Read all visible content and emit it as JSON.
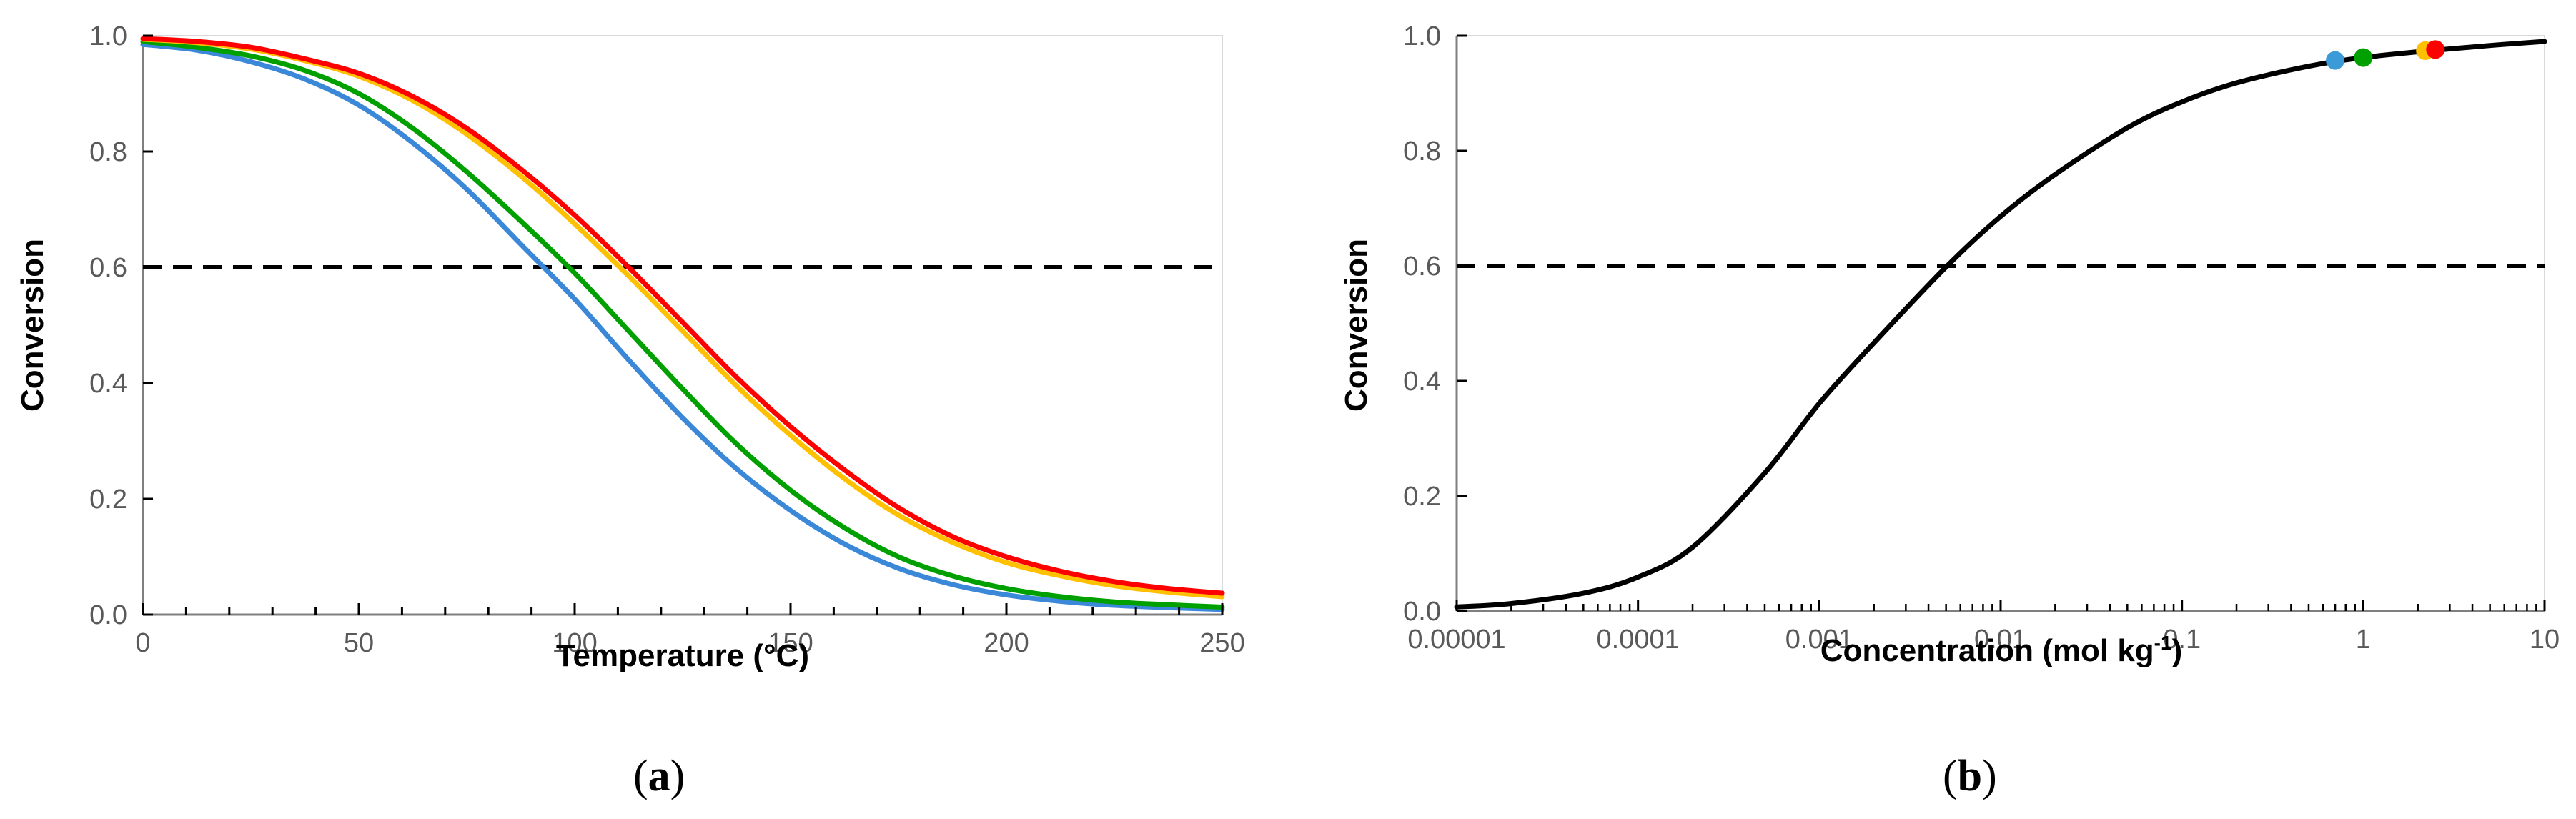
{
  "chart_data": [
    {
      "id": "a",
      "type": "line",
      "panel_label": "a",
      "xlabel": "Temperature (°C)",
      "ylabel": "Conversion",
      "xlim": [
        0,
        250
      ],
      "ylim": [
        0,
        1
      ],
      "x_ticks": [
        0,
        50,
        100,
        150,
        200,
        250
      ],
      "x_tick_labels": [
        "0",
        "50",
        "100",
        "150",
        "200",
        "250"
      ],
      "y_ticks": [
        0,
        0.2,
        0.4,
        0.6,
        0.8,
        1.0
      ],
      "y_tick_labels": [
        "0.0",
        "0.2",
        "0.4",
        "0.6",
        "0.8",
        "1.0"
      ],
      "grid": false,
      "x": [
        0,
        12.5,
        25,
        37.5,
        50,
        62.5,
        75,
        87.5,
        100,
        112.5,
        125,
        137.5,
        150,
        162.5,
        175,
        187.5,
        200,
        212.5,
        225,
        237.5,
        250
      ],
      "series": [
        {
          "name": "red",
          "color": "#ff0000",
          "values": [
            0.995,
            0.99,
            0.98,
            0.96,
            0.935,
            0.895,
            0.84,
            0.77,
            0.69,
            0.6,
            0.505,
            0.41,
            0.325,
            0.25,
            0.185,
            0.135,
            0.1,
            0.075,
            0.057,
            0.045,
            0.037
          ]
        },
        {
          "name": "orange",
          "color": "#ffc000",
          "values": [
            0.994,
            0.988,
            0.977,
            0.957,
            0.93,
            0.888,
            0.83,
            0.758,
            0.675,
            0.585,
            0.49,
            0.395,
            0.31,
            0.235,
            0.172,
            0.125,
            0.09,
            0.067,
            0.05,
            0.039,
            0.031
          ]
        },
        {
          "name": "green",
          "color": "#00a000",
          "values": [
            0.99,
            0.98,
            0.965,
            0.94,
            0.9,
            0.84,
            0.765,
            0.68,
            0.59,
            0.49,
            0.39,
            0.295,
            0.215,
            0.15,
            0.1,
            0.067,
            0.045,
            0.031,
            0.022,
            0.017,
            0.013
          ]
        },
        {
          "name": "blue",
          "color": "#3b88d8",
          "values": [
            0.985,
            0.975,
            0.955,
            0.925,
            0.88,
            0.815,
            0.735,
            0.64,
            0.545,
            0.44,
            0.34,
            0.252,
            0.18,
            0.122,
            0.08,
            0.052,
            0.034,
            0.023,
            0.016,
            0.012,
            0.009
          ]
        }
      ],
      "reference_line": {
        "y": 0.6,
        "style": "dashed",
        "color": "#000000"
      }
    },
    {
      "id": "b",
      "type": "line",
      "panel_label": "b",
      "xlabel": "Concentration (mol kg",
      "xlabel_superscript": "-1",
      "xlabel_suffix": ")",
      "ylabel": "Conversion",
      "xscale": "log",
      "xlim": [
        1e-05,
        10
      ],
      "ylim": [
        0,
        1
      ],
      "x_ticks": [
        1e-05,
        0.0001,
        0.001,
        0.01,
        0.1,
        1,
        10
      ],
      "x_tick_labels": [
        "0.00001",
        "0.0001",
        "0.001",
        "0.01",
        "0.1",
        "1",
        "10"
      ],
      "y_ticks": [
        0,
        0.2,
        0.4,
        0.6,
        0.8,
        1.0
      ],
      "y_tick_labels": [
        "0.0",
        "0.2",
        "0.4",
        "0.6",
        "0.8",
        "1.0"
      ],
      "grid": false,
      "curve": {
        "name": "conversion",
        "color": "#000000",
        "x": [
          1e-05,
          2e-05,
          5e-05,
          0.0001,
          0.0002,
          0.0005,
          0.001,
          0.002,
          0.005,
          0.01,
          0.02,
          0.05,
          0.1,
          0.2,
          0.5,
          1,
          2,
          5,
          10
        ],
        "values": [
          0.007,
          0.013,
          0.031,
          0.059,
          0.111,
          0.24,
          0.361,
          0.466,
          0.598,
          0.686,
          0.759,
          0.84,
          0.885,
          0.918,
          0.947,
          0.962,
          0.972,
          0.983,
          0.99
        ]
      },
      "points": [
        {
          "name": "blue",
          "color": "#3b9bd8",
          "x": 0.7,
          "y": 0.957
        },
        {
          "name": "green",
          "color": "#00a000",
          "x": 1.0,
          "y": 0.962
        },
        {
          "name": "orange",
          "color": "#ffc000",
          "x": 2.2,
          "y": 0.974
        },
        {
          "name": "red",
          "color": "#ff0000",
          "x": 2.5,
          "y": 0.976
        }
      ],
      "reference_line": {
        "y": 0.6,
        "style": "dashed",
        "color": "#000000"
      }
    }
  ]
}
